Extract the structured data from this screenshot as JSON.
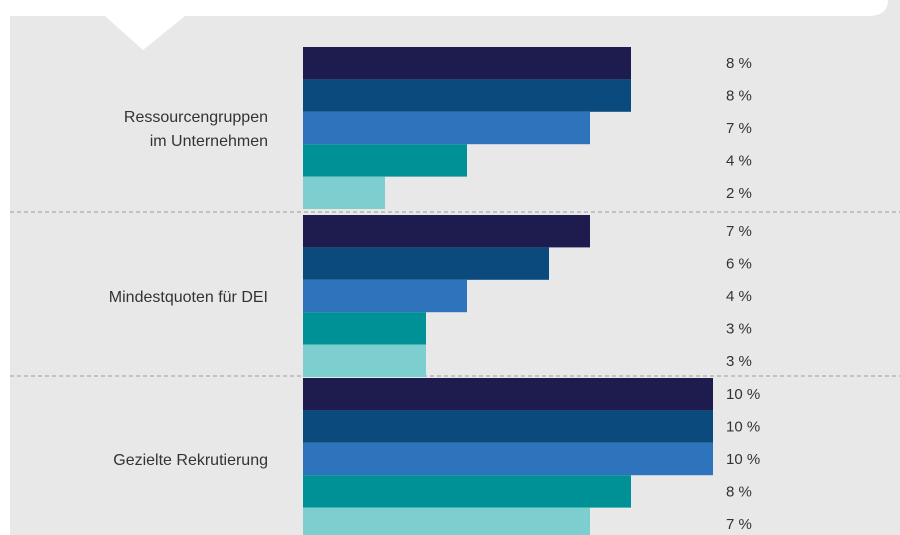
{
  "chart_data": {
    "type": "bar",
    "orientation": "horizontal",
    "categories": [
      [
        "Ressourcengruppen",
        "im Unternehmen"
      ],
      [
        "Mindestquoten für DEI"
      ],
      [
        "Gezielte Rekrutierung"
      ]
    ],
    "unit": "%",
    "series": [
      {
        "color": "#1e1b4f",
        "values": [
          8,
          7,
          10
        ]
      },
      {
        "color": "#0a4a7c",
        "values": [
          8,
          6,
          10
        ]
      },
      {
        "color": "#2e74bd",
        "values": [
          7,
          4,
          10
        ]
      },
      {
        "color": "#009196",
        "values": [
          4,
          3,
          8
        ]
      },
      {
        "color": "#7dcfcf",
        "values": [
          2,
          3,
          7
        ]
      }
    ],
    "xlim": [
      0,
      10
    ],
    "legend": "none",
    "grid": false
  },
  "colors": {
    "background": "#e9e8e9",
    "separator": "#b5b5b5",
    "callout": "#ffffff"
  }
}
